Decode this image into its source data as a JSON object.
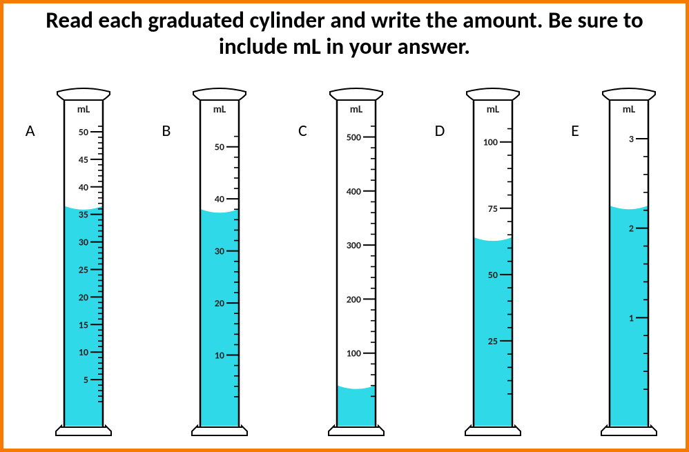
{
  "instruction": "Read each graduated cylinder and write the amount.  Be sure to include mL in your answer.",
  "border_color": "#f57c00",
  "liquid_color": "#2fd9e7",
  "outline_color": "#000000",
  "background_color": "#ffffff",
  "unit_text": "mL",
  "cylinders": [
    {
      "letter": "A",
      "min": 0,
      "max": 52,
      "major_start": 5,
      "major_step": 5,
      "major_end": 50,
      "minor_per_major": 5,
      "liquid_value": 36.5
    },
    {
      "letter": "B",
      "min": 0,
      "max": 55,
      "major_start": 10,
      "major_step": 10,
      "major_end": 50,
      "minor_per_major": 5,
      "liquid_value": 38
    },
    {
      "letter": "C",
      "min": 0,
      "max": 530,
      "major_start": 100,
      "major_step": 100,
      "major_end": 500,
      "minor_per_major": 5,
      "liquid_value": 40
    },
    {
      "letter": "D",
      "min": 0,
      "max": 108,
      "major_start": 25,
      "major_step": 25,
      "major_end": 100,
      "minor_per_major": 5,
      "liquid_value": 64
    },
    {
      "letter": "E",
      "min": 0,
      "max": 3.2,
      "major_start": 1,
      "major_step": 1,
      "major_end": 3,
      "minor_per_major": 5,
      "liquid_value": 2.25
    }
  ]
}
